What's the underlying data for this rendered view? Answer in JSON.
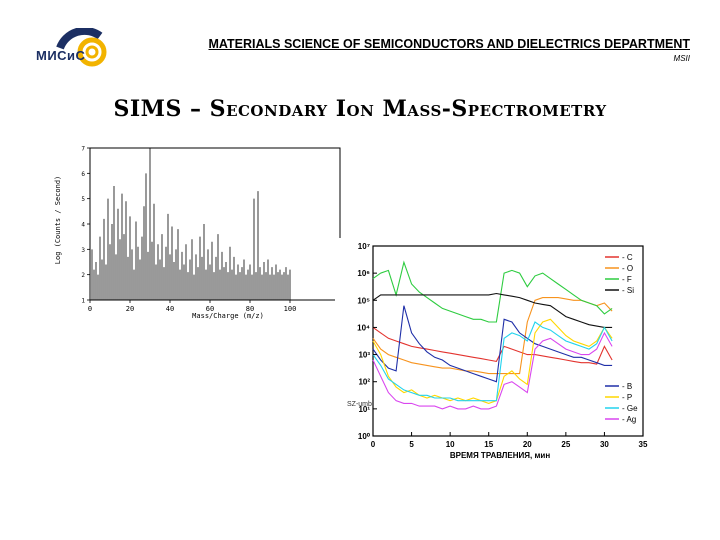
{
  "header": {
    "logo_text": "МИСиС",
    "department": "MATERIALS SCIENCE OF SEMICONDUCTORS AND DIELECTRICS DEPARTMENT",
    "department_abbr": "MSII"
  },
  "slide_title": "SIMS – Secondary Ion Mass-Spectrometry",
  "colors": {
    "logo_blue": "#1c2f63",
    "logo_yellow": "#f2b300"
  },
  "chart_data": [
    {
      "type": "line",
      "title": "",
      "xlabel": "Mass/Charge (m/z)",
      "ylabel": "Log (Counts / Second)",
      "xlim": [
        0,
        125
      ],
      "ylim": [
        1,
        7
      ],
      "xticks": [
        "0",
        "20",
        "40",
        "60",
        "80",
        "100"
      ],
      "yticks": [
        "1",
        "2",
        "3",
        "4",
        "5",
        "6",
        "7"
      ],
      "series": [
        {
          "x": [
            1,
            2,
            3,
            4,
            5,
            6,
            7,
            8,
            9,
            10,
            11,
            12,
            13,
            14,
            15,
            16,
            17,
            18,
            19,
            20,
            21,
            22,
            23,
            24,
            25,
            26,
            27,
            28,
            29,
            30,
            31,
            32,
            33,
            34,
            35,
            36,
            37,
            38,
            39,
            40,
            41,
            42,
            43,
            44,
            45,
            46,
            47,
            48,
            49,
            50,
            51,
            52,
            53,
            54,
            55,
            56,
            57,
            58,
            59,
            60,
            61,
            62,
            63,
            64,
            65,
            66,
            67,
            68,
            69,
            70,
            71,
            72,
            73,
            74,
            75,
            76,
            77,
            78,
            79,
            80,
            81,
            82,
            83,
            84,
            85,
            86,
            87,
            88,
            89,
            90,
            91,
            92,
            93,
            94,
            95,
            96,
            97,
            98,
            99,
            100
          ],
          "values": [
            3.0,
            2.2,
            2.5,
            2.0,
            3.5,
            2.6,
            4.2,
            2.4,
            5.0,
            3.2,
            4.0,
            5.5,
            2.8,
            4.6,
            3.4,
            5.2,
            3.6,
            4.9,
            2.7,
            4.3,
            3.0,
            2.2,
            4.1,
            3.1,
            2.6,
            3.5,
            4.7,
            6.0,
            2.9,
            7.0,
            3.3,
            4.8,
            2.4,
            3.2,
            2.6,
            3.6,
            2.3,
            3.1,
            4.4,
            2.8,
            3.9,
            2.5,
            3.0,
            3.8,
            2.2,
            2.9,
            2.4,
            3.2,
            2.1,
            2.6,
            3.4,
            2.0,
            2.8,
            2.3,
            3.5,
            2.7,
            4.0,
            2.2,
            3.0,
            2.4,
            3.3,
            2.1,
            2.7,
            3.6,
            2.2,
            2.9,
            2.3,
            2.5,
            2.1,
            3.1,
            2.2,
            2.7,
            2.0,
            2.4,
            2.1,
            2.3,
            2.6,
            2.0,
            2.2,
            2.4,
            2.0,
            5.0,
            2.1,
            5.3,
            2.3,
            2.0,
            2.5,
            2.1,
            2.6,
            2.0,
            2.3,
            2.0,
            2.4,
            2.1,
            2.2,
            2.0,
            2.1,
            2.3,
            2.0,
            2.2
          ]
        }
      ]
    },
    {
      "type": "line",
      "title": "",
      "xlabel": "ВРЕМЯ ТРАВЛЕНИЯ, мин",
      "ylabel": "",
      "xlim": [
        0,
        35
      ],
      "ylim": [
        0,
        7
      ],
      "y_scale": "log",
      "xticks": [
        "0",
        "5",
        "10",
        "15",
        "20",
        "25",
        "30",
        "35"
      ],
      "yticks": [
        "10⁰",
        "10¹",
        "10²",
        "10³",
        "10⁴",
        "10⁵",
        "10⁶",
        "10⁷"
      ],
      "annotation": "SZ-umb",
      "legend_top": [
        "- C",
        "- O",
        "- F",
        "- Si"
      ],
      "legend_bottom": [
        "- B",
        "- P",
        "- Ge",
        "- Ag"
      ],
      "x": [
        0,
        1,
        2,
        3,
        4,
        5,
        6,
        7,
        8,
        9,
        10,
        11,
        12,
        13,
        14,
        15,
        16,
        17,
        18,
        19,
        20,
        21,
        22,
        23,
        24,
        25,
        26,
        27,
        28,
        29,
        30,
        31
      ],
      "series": [
        {
          "name": "C",
          "color": "#e3342f",
          "values": [
            4.0,
            3.8,
            3.6,
            3.5,
            3.4,
            3.3,
            3.25,
            3.2,
            3.15,
            3.1,
            3.05,
            3.0,
            2.95,
            2.9,
            2.85,
            2.8,
            2.75,
            3.3,
            3.2,
            3.1,
            3.0,
            3.0,
            2.95,
            2.9,
            2.85,
            2.8,
            2.75,
            2.7,
            2.7,
            2.65,
            3.3,
            2.8
          ]
        },
        {
          "name": "O",
          "color": "#f7931e",
          "values": [
            3.6,
            3.2,
            3.0,
            2.9,
            2.8,
            2.7,
            2.65,
            2.6,
            2.55,
            2.5,
            2.5,
            2.45,
            2.4,
            2.4,
            2.35,
            2.3,
            2.3,
            2.3,
            2.3,
            2.3,
            4.2,
            5.0,
            5.1,
            5.1,
            5.1,
            5.05,
            5.0,
            5.0,
            4.9,
            4.8,
            4.9,
            4.6
          ]
        },
        {
          "name": "F",
          "color": "#2ecc40",
          "values": [
            5.8,
            6.0,
            6.1,
            5.2,
            6.4,
            5.6,
            5.3,
            5.1,
            4.9,
            4.7,
            4.6,
            4.5,
            4.4,
            4.3,
            4.3,
            4.2,
            4.2,
            6.0,
            6.1,
            6.0,
            5.5,
            5.9,
            6.0,
            5.8,
            5.6,
            5.4,
            5.2,
            5.0,
            4.9,
            4.8,
            4.5,
            4.7
          ]
        },
        {
          "name": "Si",
          "color": "#111111",
          "values": [
            5.0,
            5.2,
            5.2,
            5.2,
            5.2,
            5.2,
            5.2,
            5.2,
            5.2,
            5.2,
            5.2,
            5.2,
            5.2,
            5.2,
            5.2,
            5.2,
            5.25,
            5.2,
            5.15,
            5.1,
            5.0,
            4.9,
            4.85,
            4.8,
            4.6,
            4.4,
            4.3,
            4.2,
            4.1,
            4.05,
            4.0,
            4.0
          ]
        },
        {
          "name": "B",
          "color": "#1f2fa8",
          "values": [
            3.2,
            2.8,
            2.5,
            2.4,
            4.8,
            3.8,
            3.4,
            3.1,
            2.9,
            2.8,
            2.6,
            2.5,
            2.4,
            2.3,
            2.2,
            2.1,
            2.0,
            4.3,
            4.2,
            3.8,
            3.6,
            3.4,
            3.3,
            3.2,
            3.1,
            3.0,
            2.9,
            2.9,
            2.8,
            2.7,
            2.6,
            2.6
          ]
        },
        {
          "name": "P",
          "color": "#ffd700",
          "values": [
            3.5,
            3.0,
            2.2,
            1.8,
            1.6,
            1.7,
            1.5,
            1.4,
            1.5,
            1.4,
            1.3,
            1.4,
            1.3,
            1.4,
            1.3,
            1.2,
            1.3,
            2.2,
            2.4,
            2.1,
            1.9,
            3.8,
            4.2,
            4.3,
            4.0,
            3.7,
            3.5,
            3.4,
            3.3,
            3.5,
            4.0,
            3.6
          ]
        },
        {
          "name": "Ge",
          "color": "#22d3ee",
          "values": [
            3.0,
            2.6,
            2.1,
            1.9,
            1.7,
            1.6,
            1.5,
            1.5,
            1.4,
            1.4,
            1.4,
            1.3,
            1.3,
            1.3,
            1.3,
            1.3,
            1.3,
            3.6,
            3.8,
            3.7,
            3.5,
            4.2,
            4.0,
            3.9,
            3.7,
            3.5,
            3.4,
            3.3,
            3.2,
            3.4,
            4.0,
            3.5
          ]
        },
        {
          "name": "Ag",
          "color": "#d946ef",
          "values": [
            2.8,
            2.2,
            1.6,
            1.3,
            1.2,
            1.2,
            1.1,
            1.1,
            1.1,
            1.0,
            1.1,
            1.0,
            1.0,
            1.1,
            1.0,
            1.0,
            1.1,
            1.9,
            2.0,
            1.8,
            1.6,
            3.2,
            3.5,
            3.6,
            3.4,
            3.2,
            3.1,
            3.0,
            3.0,
            3.2,
            3.8,
            3.3
          ]
        }
      ]
    }
  ]
}
